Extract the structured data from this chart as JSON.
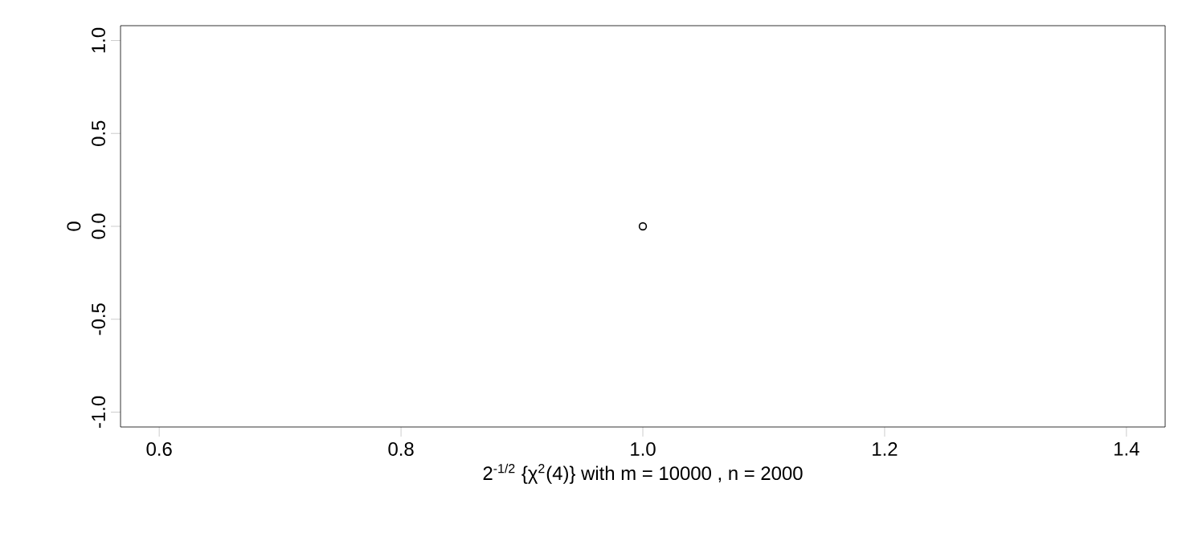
{
  "chart_data": {
    "type": "scatter",
    "xlabel": "2$^{-1/2}$ {χ$^{2}$(4)}  with m = 10000 , n = 2000",
    "ylabel": "0",
    "x": [
      1
    ],
    "series": [
      {
        "color": "#000000",
        "values": [
          0
        ]
      }
    ],
    "xlim": [
      0.568,
      1.432
    ],
    "ylim": [
      -1.08,
      1.08
    ],
    "xticks": [
      0.6,
      0.8,
      {
        "value": 1,
        "label": "1.0"
      },
      1.2,
      1.4
    ],
    "yticks": [
      {
        "value": -1.0,
        "label": "-1.0"
      },
      {
        "value": -0.5,
        "label": "-0.5"
      },
      {
        "value": 0,
        "label": "0.0"
      },
      {
        "value": 0.5,
        "label": "0.5"
      },
      {
        "value": 1.0,
        "label": "1.0"
      }
    ],
    "marker": "circle"
  }
}
